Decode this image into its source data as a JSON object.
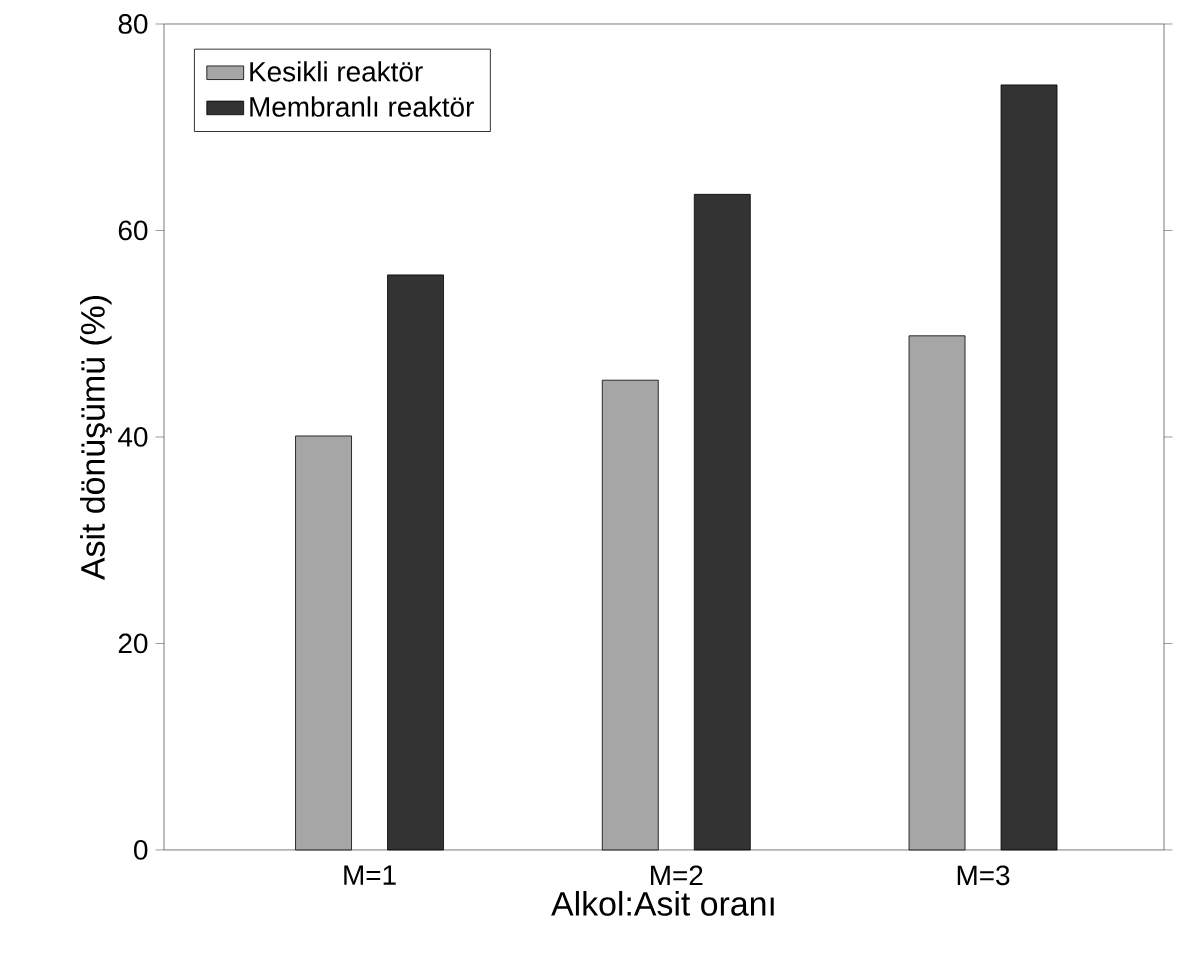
{
  "chart_data": {
    "type": "bar",
    "xlabel": "Alkol:Asit oranı",
    "ylabel": "Asit dönüşümü (%)",
    "categories": [
      "M=1",
      "M=2",
      "M=3"
    ],
    "series": [
      {
        "name": "Kesikli reaktör",
        "color": "#a6a6a6",
        "values": [
          40.1,
          45.5,
          49.8
        ]
      },
      {
        "name": "Membranlı reaktör",
        "color": "#333333",
        "values": [
          55.7,
          63.5,
          74.1
        ]
      }
    ],
    "ylim": [
      0,
      80
    ],
    "yticks": [
      0,
      20,
      40,
      60,
      80
    ],
    "grid": false,
    "legend": "top left"
  }
}
